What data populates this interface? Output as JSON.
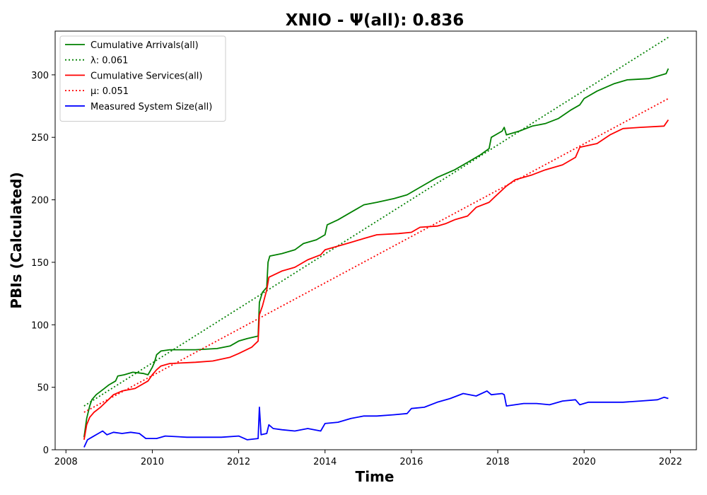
{
  "chart_data": {
    "type": "line",
    "title": "XNIO -  Ψ(all): 0.836",
    "xlabel": "Time",
    "ylabel": "PBIs (Calculated)",
    "xlim": [
      2007.75,
      2022.6
    ],
    "ylim": [
      0,
      335
    ],
    "xticks": [
      "2008",
      "2010",
      "2012",
      "2014",
      "2016",
      "2018",
      "2020",
      "2022"
    ],
    "yticks": [
      "0",
      "50",
      "100",
      "150",
      "200",
      "250",
      "300"
    ],
    "grid": false,
    "legend_position": "top-left",
    "colors": {
      "green": "#008000",
      "red": "#ff0000",
      "blue": "#0000ff"
    },
    "series": [
      {
        "name": "Cumulative Arrivals(all)",
        "color": "#008000",
        "style": "solid",
        "points": [
          [
            2008.42,
            10
          ],
          [
            2008.48,
            25
          ],
          [
            2008.55,
            35
          ],
          [
            2008.6,
            40
          ],
          [
            2008.7,
            44
          ],
          [
            2008.85,
            48
          ],
          [
            2009.0,
            52
          ],
          [
            2009.15,
            55
          ],
          [
            2009.2,
            59
          ],
          [
            2009.35,
            60
          ],
          [
            2009.55,
            62
          ],
          [
            2009.8,
            61
          ],
          [
            2009.9,
            60
          ],
          [
            2010.0,
            66
          ],
          [
            2010.05,
            70
          ],
          [
            2010.1,
            76
          ],
          [
            2010.2,
            79
          ],
          [
            2010.4,
            80
          ],
          [
            2011.0,
            80
          ],
          [
            2011.5,
            81
          ],
          [
            2011.8,
            83
          ],
          [
            2012.0,
            87
          ],
          [
            2012.2,
            89
          ],
          [
            2012.45,
            91
          ],
          [
            2012.48,
            118
          ],
          [
            2012.55,
            126
          ],
          [
            2012.65,
            130
          ],
          [
            2012.68,
            150
          ],
          [
            2012.72,
            155
          ],
          [
            2013.0,
            157
          ],
          [
            2013.3,
            160
          ],
          [
            2013.5,
            165
          ],
          [
            2013.8,
            168
          ],
          [
            2014.0,
            172
          ],
          [
            2014.05,
            180
          ],
          [
            2014.3,
            184
          ],
          [
            2014.6,
            190
          ],
          [
            2014.9,
            196
          ],
          [
            2015.2,
            198
          ],
          [
            2015.6,
            201
          ],
          [
            2015.9,
            204
          ],
          [
            2016.2,
            210
          ],
          [
            2016.6,
            218
          ],
          [
            2017.0,
            224
          ],
          [
            2017.3,
            230
          ],
          [
            2017.6,
            236
          ],
          [
            2017.8,
            241
          ],
          [
            2017.85,
            250
          ],
          [
            2018.1,
            255
          ],
          [
            2018.15,
            258
          ],
          [
            2018.2,
            252
          ],
          [
            2018.5,
            255
          ],
          [
            2018.8,
            259
          ],
          [
            2019.1,
            261
          ],
          [
            2019.4,
            265
          ],
          [
            2019.7,
            272
          ],
          [
            2019.9,
            276
          ],
          [
            2020.0,
            281
          ],
          [
            2020.3,
            287
          ],
          [
            2020.7,
            293
          ],
          [
            2021.0,
            296
          ],
          [
            2021.5,
            297
          ],
          [
            2021.9,
            301
          ],
          [
            2021.95,
            305
          ]
        ]
      },
      {
        "name": "λ: 0.061",
        "color": "#008000",
        "style": "dotted",
        "points": [
          [
            2008.42,
            35
          ],
          [
            2021.95,
            330
          ]
        ]
      },
      {
        "name": "Cumulative Services(all)",
        "color": "#ff0000",
        "style": "solid",
        "points": [
          [
            2008.42,
            8
          ],
          [
            2008.48,
            20
          ],
          [
            2008.55,
            26
          ],
          [
            2008.65,
            30
          ],
          [
            2008.8,
            34
          ],
          [
            2008.95,
            39
          ],
          [
            2009.1,
            44
          ],
          [
            2009.3,
            47
          ],
          [
            2009.6,
            49
          ],
          [
            2009.9,
            55
          ],
          [
            2010.0,
            60
          ],
          [
            2010.1,
            64
          ],
          [
            2010.2,
            67
          ],
          [
            2010.4,
            69
          ],
          [
            2011.0,
            70
          ],
          [
            2011.4,
            71
          ],
          [
            2011.8,
            74
          ],
          [
            2012.0,
            77
          ],
          [
            2012.3,
            82
          ],
          [
            2012.45,
            87
          ],
          [
            2012.48,
            108
          ],
          [
            2012.55,
            115
          ],
          [
            2012.65,
            128
          ],
          [
            2012.7,
            138
          ],
          [
            2013.0,
            143
          ],
          [
            2013.3,
            146
          ],
          [
            2013.6,
            152
          ],
          [
            2013.9,
            156
          ],
          [
            2014.0,
            160
          ],
          [
            2014.3,
            163
          ],
          [
            2014.6,
            166
          ],
          [
            2014.9,
            169
          ],
          [
            2015.2,
            172
          ],
          [
            2015.7,
            173
          ],
          [
            2016.0,
            174
          ],
          [
            2016.2,
            178
          ],
          [
            2016.6,
            179
          ],
          [
            2016.8,
            181
          ],
          [
            2017.0,
            184
          ],
          [
            2017.3,
            187
          ],
          [
            2017.5,
            194
          ],
          [
            2017.8,
            198
          ],
          [
            2017.95,
            203
          ],
          [
            2018.2,
            211
          ],
          [
            2018.4,
            216
          ],
          [
            2018.8,
            220
          ],
          [
            2019.1,
            224
          ],
          [
            2019.5,
            228
          ],
          [
            2019.8,
            234
          ],
          [
            2019.9,
            242
          ],
          [
            2020.3,
            245
          ],
          [
            2020.6,
            252
          ],
          [
            2020.9,
            257
          ],
          [
            2021.3,
            258
          ],
          [
            2021.85,
            259
          ],
          [
            2021.95,
            264
          ]
        ]
      },
      {
        "name": "μ: 0.051",
        "color": "#ff0000",
        "style": "dotted",
        "points": [
          [
            2008.42,
            30
          ],
          [
            2021.95,
            281
          ]
        ]
      },
      {
        "name": "Measured System Size(all)",
        "color": "#0000ff",
        "style": "solid",
        "points": [
          [
            2008.42,
            2
          ],
          [
            2008.5,
            8
          ],
          [
            2008.6,
            10
          ],
          [
            2008.75,
            13
          ],
          [
            2008.85,
            15
          ],
          [
            2008.95,
            12
          ],
          [
            2009.1,
            14
          ],
          [
            2009.3,
            13
          ],
          [
            2009.5,
            14
          ],
          [
            2009.7,
            13
          ],
          [
            2009.85,
            9
          ],
          [
            2010.1,
            9
          ],
          [
            2010.3,
            11
          ],
          [
            2010.8,
            10
          ],
          [
            2011.2,
            10
          ],
          [
            2011.6,
            10
          ],
          [
            2012.0,
            11
          ],
          [
            2012.2,
            8
          ],
          [
            2012.45,
            9
          ],
          [
            2012.48,
            34
          ],
          [
            2012.52,
            12
          ],
          [
            2012.65,
            13
          ],
          [
            2012.7,
            20
          ],
          [
            2012.8,
            17
          ],
          [
            2013.0,
            16
          ],
          [
            2013.3,
            15
          ],
          [
            2013.6,
            17
          ],
          [
            2013.9,
            15
          ],
          [
            2014.0,
            21
          ],
          [
            2014.3,
            22
          ],
          [
            2014.6,
            25
          ],
          [
            2014.9,
            27
          ],
          [
            2015.2,
            27
          ],
          [
            2015.6,
            28
          ],
          [
            2015.9,
            29
          ],
          [
            2016.0,
            33
          ],
          [
            2016.3,
            34
          ],
          [
            2016.6,
            38
          ],
          [
            2016.9,
            41
          ],
          [
            2017.2,
            45
          ],
          [
            2017.5,
            43
          ],
          [
            2017.75,
            47
          ],
          [
            2017.85,
            44
          ],
          [
            2018.1,
            45
          ],
          [
            2018.15,
            44
          ],
          [
            2018.2,
            35
          ],
          [
            2018.6,
            37
          ],
          [
            2018.9,
            37
          ],
          [
            2019.2,
            36
          ],
          [
            2019.5,
            39
          ],
          [
            2019.8,
            40
          ],
          [
            2019.9,
            36
          ],
          [
            2020.1,
            38
          ],
          [
            2020.5,
            38
          ],
          [
            2020.9,
            38
          ],
          [
            2021.3,
            39
          ],
          [
            2021.7,
            40
          ],
          [
            2021.85,
            42
          ],
          [
            2021.95,
            41
          ]
        ]
      }
    ]
  }
}
